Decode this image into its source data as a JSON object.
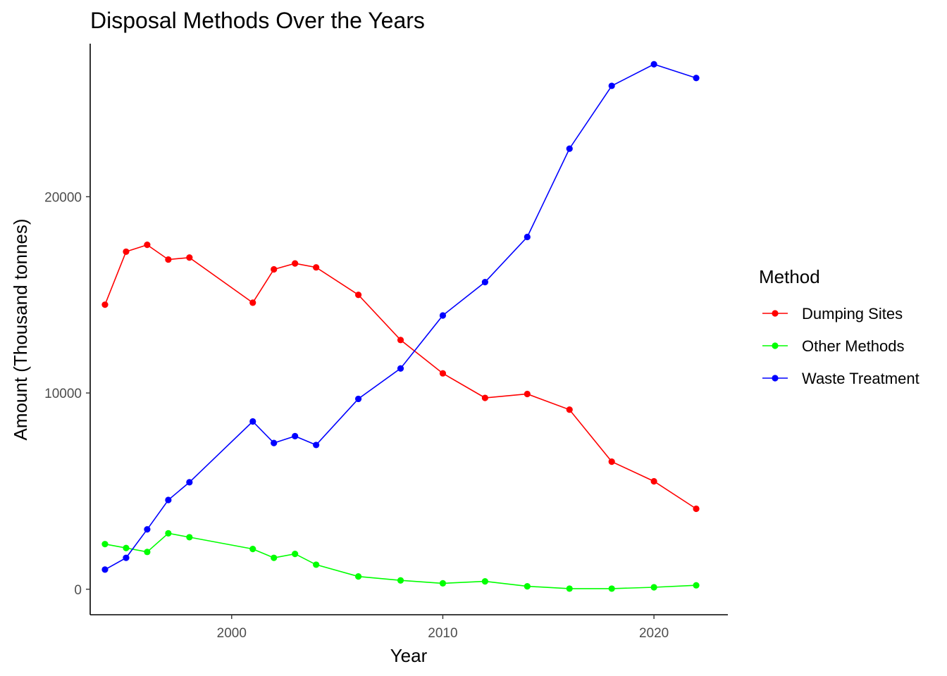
{
  "chart_data": {
    "type": "line",
    "title": "Disposal Methods Over the Years",
    "xlabel": "Year",
    "ylabel": "Amount (Thousand tonnes)",
    "xlim": [
      1993.3,
      2023.5
    ],
    "ylim": [
      -1300,
      27800
    ],
    "x_ticks": [
      2000,
      2010,
      2020
    ],
    "y_ticks": [
      0,
      10000,
      20000
    ],
    "grid": false,
    "legend": {
      "title": "Method",
      "position": "right"
    },
    "series": [
      {
        "name": "Dumping Sites",
        "color": "#ff0000",
        "x": [
          1994,
          1995,
          1996,
          1997,
          1998,
          2001,
          2002,
          2003,
          2004,
          2006,
          2008,
          2010,
          2012,
          2014,
          2016,
          2018,
          2020,
          2022
        ],
        "y": [
          14500,
          17200,
          17550,
          16800,
          16900,
          14600,
          16300,
          16600,
          16400,
          15000,
          12700,
          11000,
          9750,
          9950,
          9150,
          6500,
          5500,
          4100
        ]
      },
      {
        "name": "Other Methods",
        "color": "#00ff00",
        "x": [
          1994,
          1995,
          1996,
          1997,
          1998,
          2001,
          2002,
          2003,
          2004,
          2006,
          2008,
          2010,
          2012,
          2014,
          2016,
          2018,
          2020,
          2022
        ],
        "y": [
          2300,
          2100,
          1900,
          2850,
          2650,
          2050,
          1600,
          1800,
          1250,
          650,
          450,
          300,
          400,
          150,
          30,
          30,
          100,
          200
        ]
      },
      {
        "name": "Waste Treatment",
        "color": "#0000ff",
        "x": [
          1994,
          1995,
          1996,
          1997,
          1998,
          2001,
          2002,
          2003,
          2004,
          2006,
          2008,
          2010,
          2012,
          2014,
          2016,
          2018,
          2020,
          2022
        ],
        "y": [
          1000,
          1600,
          3050,
          4550,
          5450,
          8550,
          7450,
          7800,
          7350,
          9700,
          11250,
          13950,
          15650,
          17950,
          22450,
          25650,
          26750,
          26050
        ]
      }
    ]
  }
}
